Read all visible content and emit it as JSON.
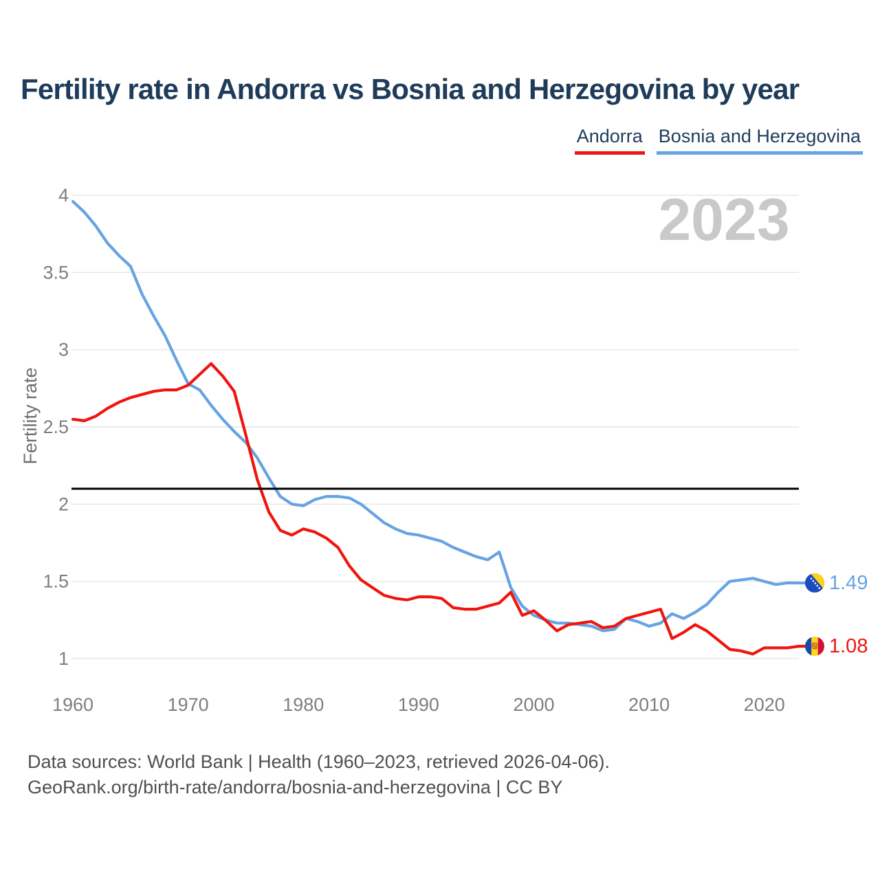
{
  "title": "Fertility rate in Andorra vs Bosnia and Herzegovina by year",
  "legend": {
    "items": [
      {
        "label": "Andorra",
        "color": "#f0140f"
      },
      {
        "label": "Bosnia and Herzegovina",
        "color": "#66a3e3"
      }
    ]
  },
  "watermark": "2023",
  "footer": {
    "line1": "Data sources: World Bank | Health (1960–2023, retrieved 2026-04-06).",
    "line2": "GeoRank.org/birth-rate/andorra/bosnia-and-herzegovina | CC BY"
  },
  "chart_data": {
    "type": "line",
    "title": "Fertility rate in Andorra vs Bosnia and Herzegovina by year",
    "xlabel": "",
    "ylabel": "Fertility rate",
    "xlim": [
      1960,
      2023
    ],
    "ylim": [
      1,
      4
    ],
    "grid": true,
    "legend_position": "top-right",
    "x_ticks": [
      1960,
      1970,
      1980,
      1990,
      2000,
      2010,
      2020
    ],
    "y_ticks": [
      1,
      1.5,
      2,
      2.5,
      3,
      3.5,
      4
    ],
    "y_tick_labels": [
      "1",
      "1.5",
      "2",
      "2.5",
      "3",
      "3.5",
      "4"
    ],
    "reference_line": {
      "value": 2.1,
      "color": "#000000"
    },
    "watermark": "2023",
    "x": [
      1960,
      1961,
      1962,
      1963,
      1964,
      1965,
      1966,
      1967,
      1968,
      1969,
      1970,
      1971,
      1972,
      1973,
      1974,
      1975,
      1976,
      1977,
      1978,
      1979,
      1980,
      1981,
      1982,
      1983,
      1984,
      1985,
      1986,
      1987,
      1988,
      1989,
      1990,
      1991,
      1992,
      1993,
      1994,
      1995,
      1996,
      1997,
      1998,
      1999,
      2000,
      2001,
      2002,
      2003,
      2004,
      2005,
      2006,
      2007,
      2008,
      2009,
      2010,
      2011,
      2012,
      2013,
      2014,
      2015,
      2016,
      2017,
      2018,
      2019,
      2020,
      2021,
      2022,
      2023
    ],
    "series": [
      {
        "name": "Bosnia and Herzegovina",
        "color": "#66a3e3",
        "flag": "bosnia-and-herzegovina",
        "end_label": "1.49",
        "values": [
          3.96,
          3.89,
          3.8,
          3.69,
          3.61,
          3.54,
          3.36,
          3.22,
          3.09,
          2.93,
          2.78,
          2.74,
          2.64,
          2.55,
          2.47,
          2.4,
          2.3,
          2.17,
          2.05,
          2.0,
          1.99,
          2.03,
          2.05,
          2.05,
          2.04,
          2.0,
          1.94,
          1.88,
          1.84,
          1.81,
          1.8,
          1.78,
          1.76,
          1.72,
          1.69,
          1.66,
          1.64,
          1.69,
          1.46,
          1.34,
          1.28,
          1.25,
          1.23,
          1.23,
          1.22,
          1.21,
          1.18,
          1.19,
          1.26,
          1.24,
          1.21,
          1.23,
          1.29,
          1.26,
          1.3,
          1.35,
          1.43,
          1.5,
          1.51,
          1.52,
          1.5,
          1.48,
          1.49,
          1.49
        ]
      },
      {
        "name": "Andorra",
        "color": "#f0140f",
        "flag": "andorra",
        "end_label": "1.08",
        "values": [
          2.55,
          2.54,
          2.57,
          2.62,
          2.66,
          2.69,
          2.71,
          2.73,
          2.74,
          2.74,
          2.77,
          2.84,
          2.91,
          2.83,
          2.73,
          2.45,
          2.16,
          1.95,
          1.83,
          1.8,
          1.84,
          1.82,
          1.78,
          1.72,
          1.6,
          1.51,
          1.46,
          1.41,
          1.39,
          1.38,
          1.4,
          1.4,
          1.39,
          1.33,
          1.32,
          1.32,
          1.34,
          1.36,
          1.43,
          1.28,
          1.31,
          1.25,
          1.18,
          1.22,
          1.23,
          1.24,
          1.2,
          1.21,
          1.26,
          1.28,
          1.3,
          1.32,
          1.13,
          1.17,
          1.22,
          1.18,
          1.12,
          1.06,
          1.05,
          1.03,
          1.07,
          1.07,
          1.07,
          1.08
        ]
      }
    ]
  },
  "colors": {
    "title": "#1e3c5a",
    "axis_text": "#7e7e7e",
    "gridline": "#e6e6e6",
    "watermark": "#c9c9c9",
    "footer_text": "#4f4f4f",
    "background": "#ffffff"
  }
}
